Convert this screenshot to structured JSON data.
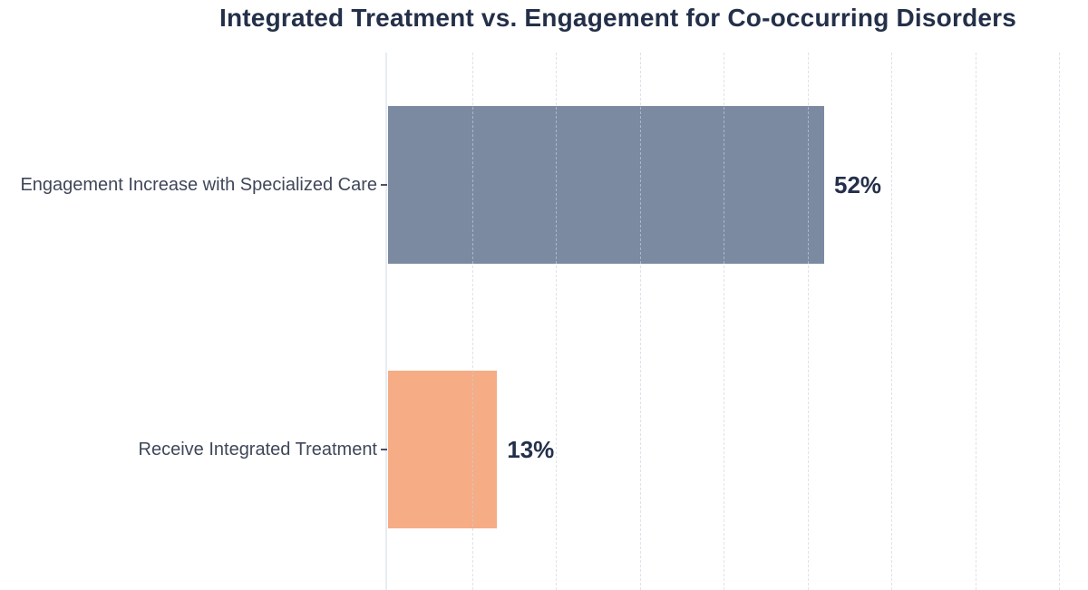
{
  "chart_data": {
    "type": "bar",
    "orientation": "horizontal",
    "title": "Integrated Treatment vs. Engagement for Co-occurring Disorders",
    "categories": [
      "Engagement Increase with Specialized Care",
      "Receive Integrated Treatment"
    ],
    "values": [
      52,
      13
    ],
    "value_labels": [
      "52%",
      "13%"
    ],
    "bar_colors": [
      "#7b8aa0",
      "#f6ac84"
    ],
    "xlabel": "",
    "ylabel": "",
    "xlim": [
      0,
      83.5
    ],
    "gridline_ticks_percent": [
      10,
      20,
      30,
      40,
      50,
      60,
      70,
      80
    ],
    "grid": "vertical-dashed-over-bars",
    "legend": "none",
    "colors": {
      "title": "#243049",
      "category_label": "#3f4759",
      "value_label": "#24304a",
      "axis_spine": "#e8edf2",
      "gridline": "#cbd1dd",
      "background": "#ffffff"
    }
  }
}
